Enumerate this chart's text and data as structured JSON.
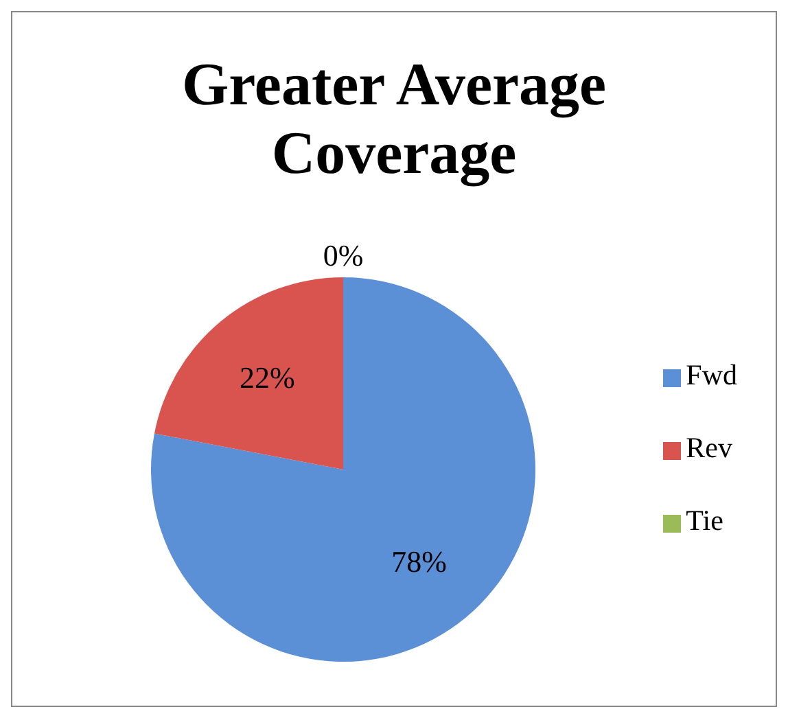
{
  "chart_data": {
    "type": "pie",
    "title": "Greater Average Coverage",
    "categories": [
      "Fwd",
      "Rev",
      "Tie"
    ],
    "values": [
      78,
      22,
      0
    ],
    "colors": [
      "#5b8fd6",
      "#d9534f",
      "#9bbb59"
    ],
    "value_labels": [
      "78%",
      "22%",
      "0%"
    ],
    "legend": "right"
  }
}
